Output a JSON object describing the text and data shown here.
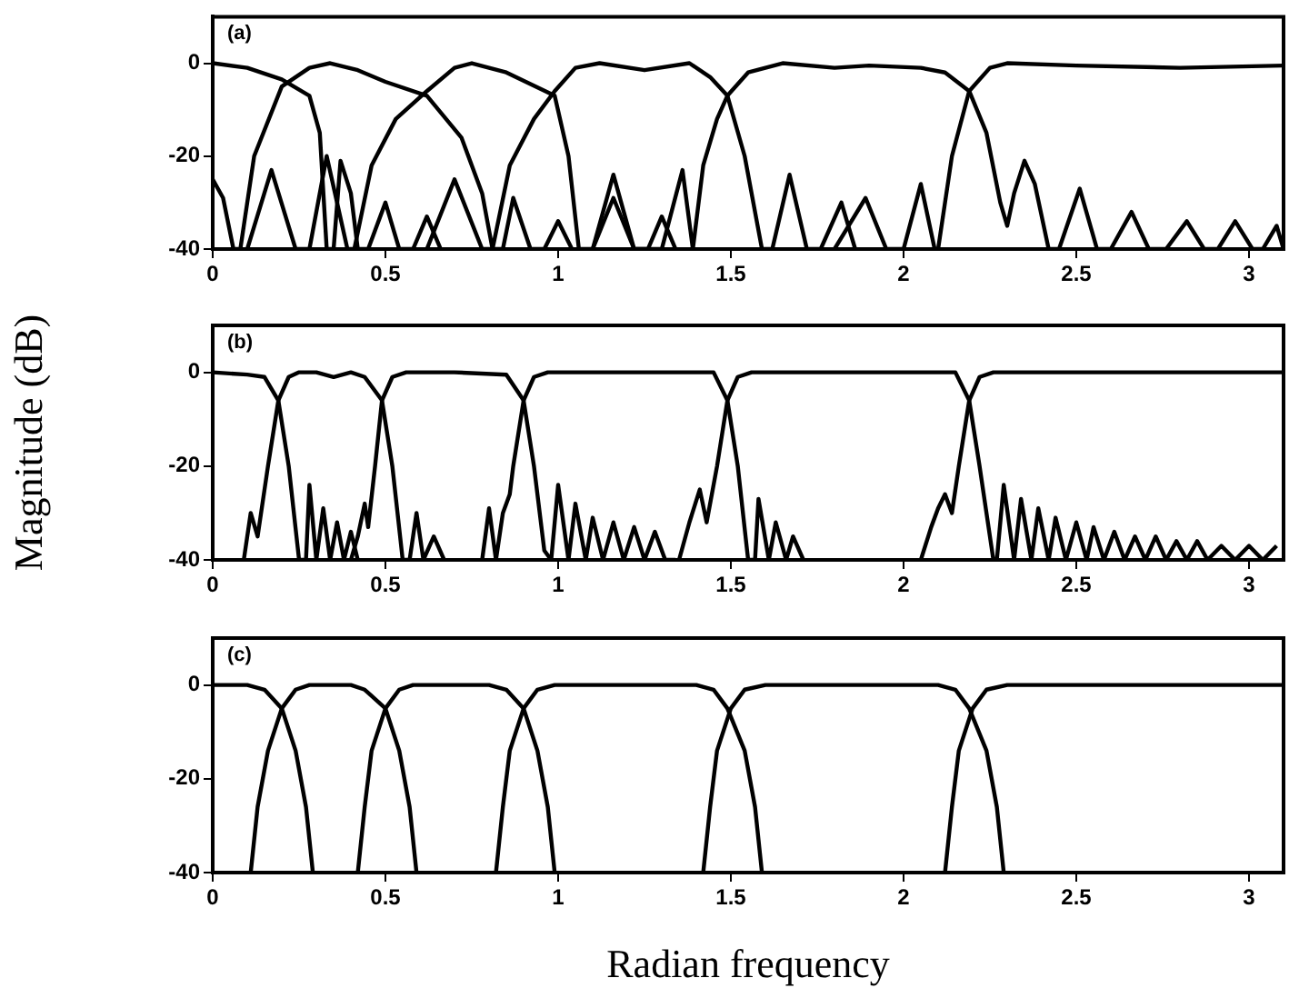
{
  "chart_data": [
    {
      "type": "line",
      "annotations": [
        "(a)"
      ],
      "xlim": [
        0,
        3.1
      ],
      "ylim": [
        -40,
        10
      ],
      "xticks": [
        0,
        0.5,
        1,
        1.5,
        2,
        2.5,
        3
      ],
      "yticks": [
        -40,
        -20,
        0
      ],
      "series": [
        {
          "color": "#000000",
          "x": [
            0,
            0.1,
            0.2,
            0.28,
            0.31,
            0.33,
            0.35,
            0.37,
            0.4,
            0.42,
            0.45,
            0.5,
            0.54,
            0.58,
            0.62,
            0.66
          ],
          "values": [
            0,
            -1,
            -3.5,
            -7,
            -15,
            -40,
            -40,
            -21,
            -28,
            -40,
            -40,
            -30,
            -40,
            -40,
            -33,
            -40
          ]
        },
        {
          "color": "#000000",
          "x": [
            0,
            0.03,
            0.06,
            0.08,
            0.12,
            0.2,
            0.28,
            0.34,
            0.42,
            0.5,
            0.62,
            0.72,
            0.78,
            0.81,
            0.84,
            0.87,
            0.92,
            0.96,
            1.0,
            1.04
          ],
          "values": [
            -25,
            -29,
            -40,
            -40,
            -20,
            -5,
            -1,
            0,
            -1.5,
            -4,
            -7,
            -16,
            -28,
            -40,
            -40,
            -29,
            -40,
            -40,
            -34,
            -40
          ]
        },
        {
          "color": "#000000",
          "x": [
            0.1,
            0.17,
            0.24,
            0.28,
            0.33,
            0.39,
            0.41,
            0.46,
            0.53,
            0.62,
            0.7,
            0.75,
            0.85,
            0.99,
            1.03,
            1.06,
            1.1,
            1.16,
            1.22,
            1.26,
            1.3,
            1.34
          ],
          "values": [
            -40,
            -23,
            -40,
            -40,
            -20,
            -40,
            -40,
            -22,
            -12,
            -6,
            -1,
            0,
            -2,
            -7,
            -20,
            -40,
            -40,
            -29,
            -40,
            -40,
            -33,
            -40
          ]
        },
        {
          "color": "#000000",
          "x": [
            0.62,
            0.7,
            0.78,
            0.81,
            0.86,
            0.93,
            0.99,
            1.05,
            1.12,
            1.25,
            1.38,
            1.44,
            1.49,
            1.54,
            1.59,
            1.62,
            1.67,
            1.72,
            1.76,
            1.82,
            1.86
          ],
          "values": [
            -40,
            -25,
            -40,
            -40,
            -22,
            -12,
            -6,
            -1,
            0,
            -1.5,
            0,
            -3,
            -7,
            -20,
            -40,
            -40,
            -24,
            -40,
            -40,
            -30,
            -40
          ]
        },
        {
          "color": "#000000",
          "x": [
            1.1,
            1.16,
            1.22,
            1.3,
            1.36,
            1.39,
            1.42,
            1.46,
            1.49,
            1.55,
            1.65,
            1.8,
            1.9,
            2.05,
            2.12,
            2.19,
            2.24,
            2.28,
            2.3,
            2.32,
            2.35,
            2.38,
            2.42,
            2.45,
            2.51,
            2.56,
            2.6,
            2.66,
            2.71,
            2.76,
            2.82,
            2.87,
            2.91,
            2.96,
            3.01,
            3.04,
            3.08,
            3.1
          ],
          "values": [
            -40,
            -24,
            -40,
            -40,
            -23,
            -40,
            -22,
            -12,
            -7,
            -2,
            0,
            -1,
            -0.5,
            -1,
            -2,
            -6,
            -15,
            -30,
            -35,
            -28,
            -21,
            -26,
            -40,
            -40,
            -27,
            -40,
            -40,
            -32,
            -40,
            -40,
            -34,
            -40,
            -40,
            -34,
            -40,
            -40,
            -35,
            -40
          ]
        },
        {
          "color": "#000000",
          "x": [
            1.8,
            1.89,
            1.95,
            2.0,
            2.05,
            2.09,
            2.1,
            2.14,
            2.19,
            2.25,
            2.3,
            2.5,
            2.8,
            3.1
          ],
          "values": [
            -40,
            -29,
            -40,
            -40,
            -26,
            -40,
            -40,
            -20,
            -6,
            -1,
            0,
            -0.5,
            -1,
            -0.5
          ]
        }
      ]
    },
    {
      "type": "line",
      "annotations": [
        "(b)"
      ],
      "ylabel": "Magnitude (dB)",
      "xlim": [
        0,
        3.1
      ],
      "ylim": [
        -40,
        10
      ],
      "xticks": [
        0,
        0.5,
        1,
        1.5,
        2,
        2.5,
        3
      ],
      "yticks": [
        -40,
        -20,
        0
      ],
      "series": [
        {
          "color": "#000000",
          "x": [
            0,
            0.1,
            0.15,
            0.19,
            0.22,
            0.25,
            0.27,
            0.28,
            0.3,
            0.32,
            0.34,
            0.36,
            0.38,
            0.4,
            0.42
          ],
          "values": [
            0,
            -0.5,
            -1,
            -6,
            -20,
            -40,
            -40,
            -24,
            -40,
            -29,
            -40,
            -32,
            -40,
            -34,
            -40
          ]
        },
        {
          "color": "#000000",
          "x": [
            0.09,
            0.11,
            0.13,
            0.16,
            0.19,
            0.22,
            0.25,
            0.3,
            0.35,
            0.4,
            0.44,
            0.49,
            0.52,
            0.55,
            0.57,
            0.59,
            0.61,
            0.64,
            0.67
          ],
          "values": [
            -40,
            -30,
            -35,
            -20,
            -6,
            -1,
            0,
            0,
            -1,
            0,
            -1,
            -6,
            -20,
            -40,
            -40,
            -30,
            -40,
            -35,
            -40
          ]
        },
        {
          "color": "#000000",
          "x": [
            0.4,
            0.42,
            0.44,
            0.45,
            0.47,
            0.49,
            0.52,
            0.56,
            0.7,
            0.85,
            0.9,
            0.93,
            0.96,
            0.98,
            1.0,
            1.03,
            1.05,
            1.08,
            1.1,
            1.13,
            1.16,
            1.19,
            1.22,
            1.25,
            1.28,
            1.31,
            1.34
          ],
          "values": [
            -40,
            -35,
            -28,
            -33,
            -20,
            -6,
            -1,
            0,
            0,
            -0.5,
            -6,
            -20,
            -38,
            -40,
            -24,
            -40,
            -28,
            -40,
            -31,
            -40,
            -32,
            -40,
            -33,
            -40,
            -34,
            -40,
            -40
          ]
        },
        {
          "color": "#000000",
          "x": [
            0.78,
            0.8,
            0.82,
            0.84,
            0.86,
            0.87,
            0.9,
            0.93,
            0.97,
            1.2,
            1.45,
            1.49,
            1.52,
            1.55,
            1.57,
            1.58,
            1.61,
            1.63,
            1.66,
            1.68,
            1.71
          ],
          "values": [
            -40,
            -29,
            -40,
            -30,
            -26,
            -20,
            -6,
            -1,
            0,
            0,
            0,
            -6,
            -20,
            -40,
            -40,
            -27,
            -40,
            -32,
            -40,
            -35,
            -40
          ]
        },
        {
          "color": "#000000",
          "x": [
            1.35,
            1.38,
            1.41,
            1.43,
            1.46,
            1.49,
            1.52,
            1.56,
            1.9,
            2.15,
            2.19,
            2.22,
            2.26,
            2.27,
            2.29,
            2.32,
            2.34,
            2.37,
            2.39,
            2.42,
            2.44,
            2.47,
            2.5,
            2.53,
            2.55,
            2.58,
            2.61,
            2.64,
            2.67,
            2.7,
            2.73,
            2.76,
            2.79,
            2.82,
            2.85,
            2.88,
            2.92,
            2.96,
            3.0,
            3.04,
            3.08
          ],
          "values": [
            -40,
            -32,
            -25,
            -32,
            -20,
            -6,
            -1,
            0,
            0,
            0,
            -6,
            -20,
            -40,
            -40,
            -24,
            -40,
            -27,
            -40,
            -29,
            -40,
            -31,
            -40,
            -32,
            -40,
            -33,
            -40,
            -34,
            -40,
            -35,
            -40,
            -35,
            -40,
            -36,
            -40,
            -36,
            -40,
            -37,
            -40,
            -37,
            -40,
            -37
          ]
        },
        {
          "color": "#000000",
          "x": [
            2.05,
            2.08,
            2.1,
            2.12,
            2.14,
            2.16,
            2.19,
            2.22,
            2.26,
            3.1
          ],
          "values": [
            -40,
            -33,
            -29,
            -26,
            -30,
            -20,
            -6,
            -1,
            0,
            0
          ]
        }
      ]
    },
    {
      "type": "line",
      "annotations": [
        "(c)"
      ],
      "xlabel": "Radian frequency",
      "xlim": [
        0,
        3.1
      ],
      "ylim": [
        -40,
        10
      ],
      "xticks": [
        0,
        0.5,
        1,
        1.5,
        2,
        2.5,
        3
      ],
      "yticks": [
        -40,
        -20,
        0
      ],
      "series": [
        {
          "color": "#000000",
          "x": [
            0,
            0.1,
            0.15,
            0.2,
            0.24,
            0.27,
            0.29
          ],
          "values": [
            0,
            0,
            -1,
            -5,
            -14,
            -26,
            -40
          ]
        },
        {
          "color": "#000000",
          "x": [
            0.11,
            0.13,
            0.16,
            0.2,
            0.24,
            0.28,
            0.4,
            0.44,
            0.5,
            0.54,
            0.57,
            0.59
          ],
          "values": [
            -40,
            -26,
            -14,
            -5,
            -1,
            0,
            0,
            -1,
            -5,
            -14,
            -26,
            -40
          ]
        },
        {
          "color": "#000000",
          "x": [
            0.42,
            0.44,
            0.46,
            0.5,
            0.54,
            0.58,
            0.8,
            0.85,
            0.9,
            0.94,
            0.97,
            0.99
          ],
          "values": [
            -40,
            -26,
            -14,
            -5,
            -1,
            0,
            0,
            -1,
            -5,
            -14,
            -26,
            -40
          ]
        },
        {
          "color": "#000000",
          "x": [
            0.82,
            0.84,
            0.86,
            0.9,
            0.94,
            0.99,
            1.4,
            1.45,
            1.49,
            1.54,
            1.57,
            1.59
          ],
          "values": [
            -40,
            -26,
            -14,
            -5,
            -1,
            0,
            0,
            -1,
            -5,
            -14,
            -26,
            -40
          ]
        },
        {
          "color": "#000000",
          "x": [
            1.42,
            1.44,
            1.46,
            1.5,
            1.54,
            1.6,
            2.1,
            2.15,
            2.19,
            2.24,
            2.27,
            2.29
          ],
          "values": [
            -40,
            -26,
            -14,
            -5,
            -1,
            0,
            0,
            -1,
            -5,
            -14,
            -26,
            -40
          ]
        },
        {
          "color": "#000000",
          "x": [
            2.12,
            2.14,
            2.16,
            2.2,
            2.24,
            2.3,
            3.1
          ],
          "values": [
            -40,
            -26,
            -14,
            -5,
            -1,
            0,
            0
          ]
        }
      ]
    }
  ]
}
